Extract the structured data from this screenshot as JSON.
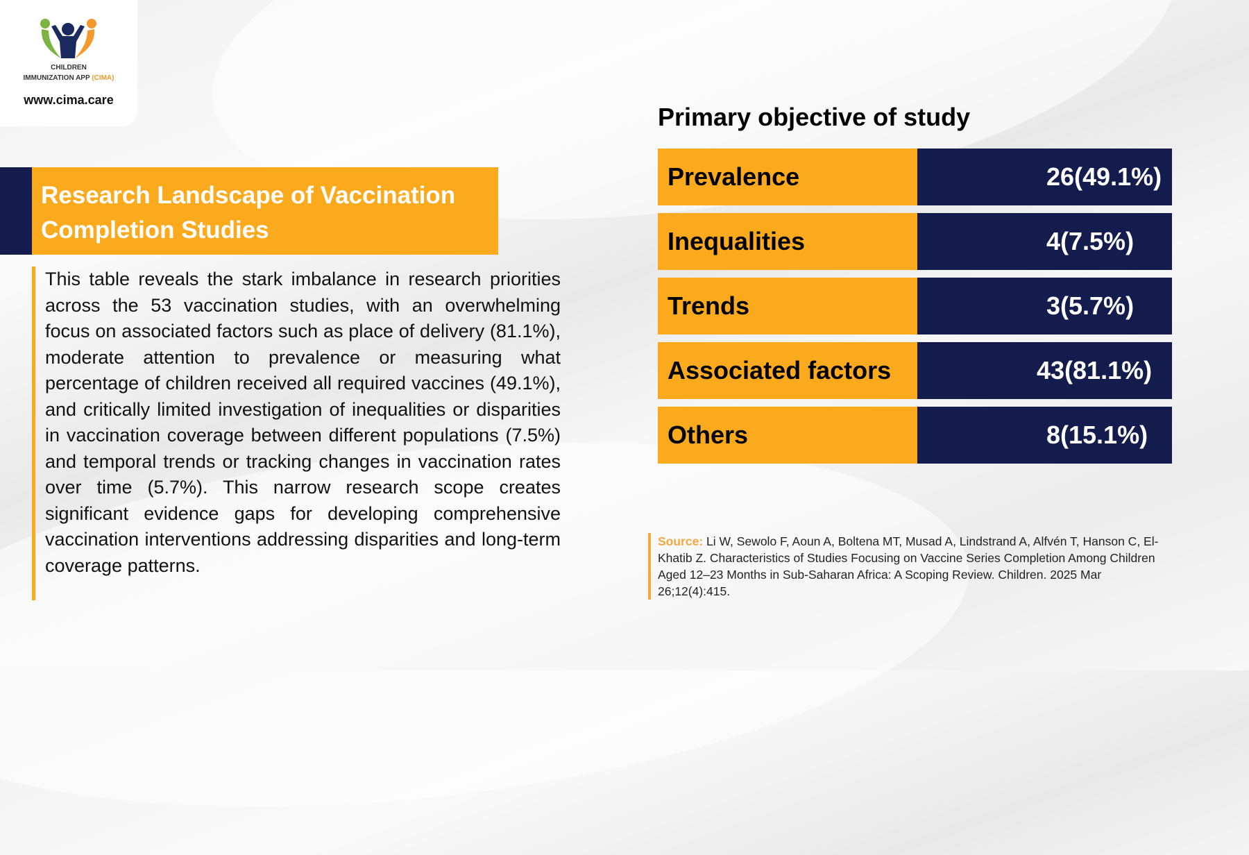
{
  "logo": {
    "line1": "CHILDREN",
    "line2": "IMMUNIZATION APP",
    "line2_accent": "(CIMA)",
    "url": "www.cima.care"
  },
  "title": {
    "line1": "Research Landscape of Vaccination",
    "line2": "Completion Studies"
  },
  "paragraph": "This table reveals the stark imbalance in research priorities across the 53 vaccination studies, with an overwhelming focus on associated factors such as place of delivery (81.1%), moderate attention to prevalence or measuring what percentage of children received all required vaccines (49.1%), and critically limited investigation of inequalities or disparities in vaccination coverage between different populations (7.5%) and temporal trends or tracking changes in vaccination rates over time (5.7%). This narrow research scope creates significant evidence gaps for developing comprehensive vaccination interventions addressing disparities and long-term coverage patterns.",
  "table": {
    "heading": "Primary objective of study",
    "rows": [
      {
        "label": "Prevalence",
        "value": "26(49.1%)"
      },
      {
        "label": "Inequalities",
        "value": "4(7.5%)"
      },
      {
        "label": "Trends",
        "value": "3(5.7%)"
      },
      {
        "label": "Associated factors",
        "value": "43(81.1%)"
      },
      {
        "label": "Others",
        "value": "8(15.1%)"
      }
    ]
  },
  "source": {
    "label": "Source:",
    "text": " Li W, Sewolo F, Aoun A, Boltena MT, Musad A, Lindstrand A, Alfvén T, Hanson C, El-Khatib Z. Characteristics of Studies Focusing on Vaccine Series Completion Among Children Aged 12–23 Months in Sub-Saharan Africa: A Scoping Review. Children. 2025 Mar 26;12(4):415."
  },
  "colors": {
    "orange": "#fbaa1e",
    "navy": "#141b4d"
  }
}
